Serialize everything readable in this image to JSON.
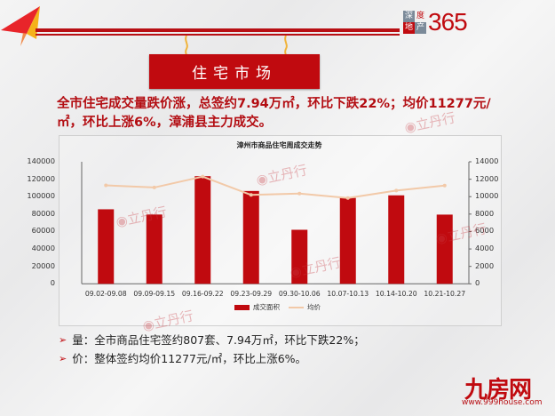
{
  "header": {
    "section_title": "住宅市场",
    "brand_logo": {
      "line1": "深度",
      "line2": "地产",
      "number": "365"
    }
  },
  "headline": {
    "line1": "全市住宅成交量跌价涨，总签约7.94万㎡，环比下跌22%；均价11277元/",
    "line2": "㎡，环比上涨6%，漳浦县主力成交。"
  },
  "chart_data": {
    "type": "bar",
    "title": "漳州市商品住宅周成交走势",
    "categories": [
      "09.02-09.08",
      "09.09-09.15",
      "09.16-09.22",
      "09.23-09.29",
      "09.30-10.06",
      "10.07-10.13",
      "10.14-10.20",
      "10.21-10.27"
    ],
    "series": [
      {
        "name": "成交面积",
        "type": "bar",
        "axis": "left",
        "color": "#c00a0f",
        "values": [
          85500,
          79500,
          123500,
          106500,
          62000,
          98500,
          101500,
          79400
        ]
      },
      {
        "name": "均价",
        "type": "line",
        "axis": "right",
        "color": "#f2c9a8",
        "values": [
          11300,
          11050,
          12300,
          10200,
          10350,
          9850,
          10700,
          11277
        ]
      }
    ],
    "left_axis": {
      "ticks": [
        "0",
        "20000",
        "40000",
        "60000",
        "80000",
        "100000",
        "120000",
        "140000"
      ],
      "ylim": [
        0,
        140000
      ]
    },
    "right_axis": {
      "ticks": [
        "0",
        "2000",
        "4000",
        "6000",
        "8000",
        "10000",
        "12000",
        "14000"
      ],
      "ylim": [
        0,
        14000
      ]
    },
    "xlabel": "",
    "ylabel": "",
    "legend_position": "bottom",
    "grid": false
  },
  "bullets": [
    {
      "label": "量：",
      "text": "全市商品住宅签约807套、7.94万㎡，环比下跌22%；"
    },
    {
      "label": "价：",
      "text": "整体签约均价11277元/㎡，环比上涨6%。"
    }
  ],
  "watermark": {
    "text": "立丹行",
    "sub": "LI DAN HANG"
  },
  "footer": {
    "logo": "九房网",
    "url": "www.999house.com"
  }
}
